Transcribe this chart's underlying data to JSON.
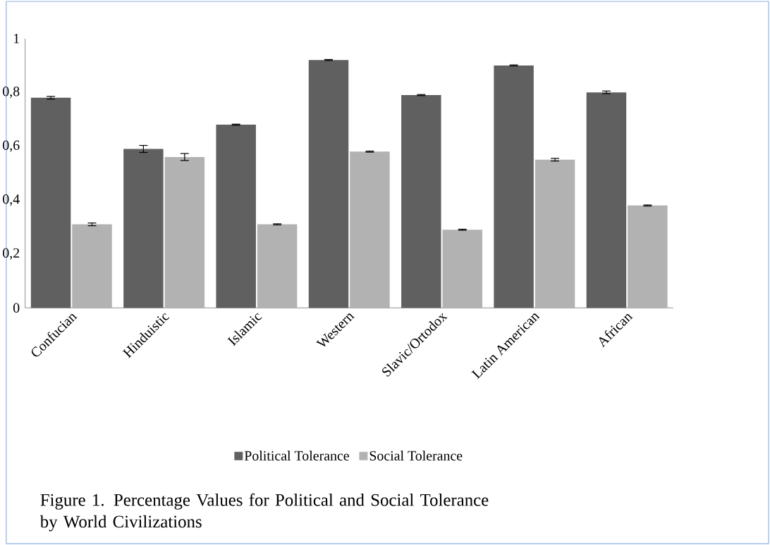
{
  "chart_data": {
    "type": "bar",
    "categories": [
      "Confucian",
      "Hinduistic",
      "Islamic",
      "Western",
      "Slavic/Ortodox",
      "Latin American",
      "African"
    ],
    "series": [
      {
        "name": "Political Tolerance",
        "color": "#606060",
        "values": [
          0.78,
          0.59,
          0.68,
          0.92,
          0.79,
          0.9,
          0.8
        ],
        "errors": [
          0.005,
          0.013,
          0.002,
          0.002,
          0.002,
          0.002,
          0.005
        ]
      },
      {
        "name": "Social Tolerance",
        "color": "#b2b2b2",
        "values": [
          0.31,
          0.56,
          0.31,
          0.58,
          0.29,
          0.55,
          0.38
        ],
        "errors": [
          0.005,
          0.013,
          0.002,
          0.002,
          0.002,
          0.005,
          0.002
        ]
      }
    ],
    "ylim": [
      0,
      1
    ],
    "yticks": [
      {
        "value": 0,
        "label": "0"
      },
      {
        "value": 0.2,
        "label": "0,2"
      },
      {
        "value": 0.4,
        "label": "0,4"
      },
      {
        "value": 0.6,
        "label": "0,6"
      },
      {
        "value": 0.8,
        "label": "0,8"
      },
      {
        "value": 1,
        "label": "1"
      }
    ],
    "legend": "bottom",
    "annotations": [
      "Figure 1. Percentage Values for Political and Social Tolerance by World Civilizations"
    ]
  }
}
